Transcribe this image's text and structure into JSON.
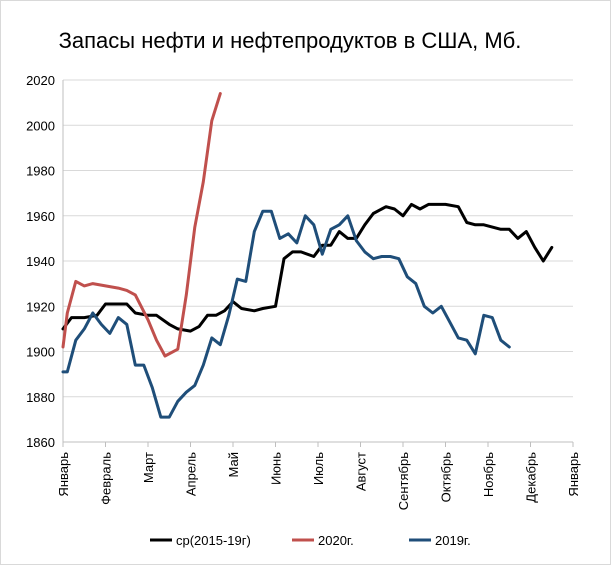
{
  "chart_data": {
    "type": "line",
    "title": "Запасы нефти и нефтепродуктов в США, Мб.",
    "xlabel": "",
    "ylabel": "",
    "ylim": [
      1860,
      2020
    ],
    "yticks": [
      1860,
      1880,
      1900,
      1920,
      1940,
      1960,
      1980,
      2000,
      2020
    ],
    "grid": true,
    "legend_position": "bottom",
    "categories": [
      "Январь",
      "Февраль",
      "Март",
      "Апрель",
      "Май",
      "Июнь",
      "Июль",
      "Август",
      "Сентябрь",
      "Октябрь",
      "Ноябрь",
      "Декабрь",
      "Январь"
    ],
    "series": [
      {
        "name": "ср(2015-19г)",
        "color": "#000000",
        "points": [
          [
            0.0,
            1910
          ],
          [
            0.2,
            1915
          ],
          [
            0.5,
            1915
          ],
          [
            0.8,
            1916
          ],
          [
            1.0,
            1921
          ],
          [
            1.3,
            1921
          ],
          [
            1.5,
            1921
          ],
          [
            1.7,
            1917
          ],
          [
            2.0,
            1916
          ],
          [
            2.2,
            1916
          ],
          [
            2.5,
            1912
          ],
          [
            2.7,
            1910
          ],
          [
            3.0,
            1909
          ],
          [
            3.2,
            1911
          ],
          [
            3.4,
            1916
          ],
          [
            3.6,
            1916
          ],
          [
            3.8,
            1918
          ],
          [
            4.0,
            1922
          ],
          [
            4.2,
            1919
          ],
          [
            4.5,
            1918
          ],
          [
            4.7,
            1919
          ],
          [
            5.0,
            1920
          ],
          [
            5.2,
            1941
          ],
          [
            5.4,
            1944
          ],
          [
            5.6,
            1944
          ],
          [
            5.9,
            1942
          ],
          [
            6.1,
            1947
          ],
          [
            6.3,
            1947
          ],
          [
            6.5,
            1953
          ],
          [
            6.7,
            1950
          ],
          [
            6.9,
            1950
          ],
          [
            7.1,
            1956
          ],
          [
            7.3,
            1961
          ],
          [
            7.6,
            1964
          ],
          [
            7.8,
            1963
          ],
          [
            8.0,
            1960
          ],
          [
            8.2,
            1965
          ],
          [
            8.4,
            1963
          ],
          [
            8.6,
            1965
          ],
          [
            8.8,
            1965
          ],
          [
            9.0,
            1965
          ],
          [
            9.3,
            1964
          ],
          [
            9.5,
            1957
          ],
          [
            9.7,
            1956
          ],
          [
            9.9,
            1956
          ],
          [
            10.1,
            1955
          ],
          [
            10.3,
            1954
          ],
          [
            10.5,
            1954
          ],
          [
            10.7,
            1950
          ],
          [
            10.9,
            1953
          ],
          [
            11.1,
            1946
          ],
          [
            11.3,
            1940
          ],
          [
            11.5,
            1946
          ]
        ]
      },
      {
        "name": "2020г.",
        "color": "#c0504d",
        "points": [
          [
            0.0,
            1902
          ],
          [
            0.1,
            1917
          ],
          [
            0.3,
            1931
          ],
          [
            0.5,
            1929
          ],
          [
            0.7,
            1930
          ],
          [
            1.0,
            1929
          ],
          [
            1.3,
            1928
          ],
          [
            1.5,
            1927
          ],
          [
            1.7,
            1925
          ],
          [
            2.0,
            1914
          ],
          [
            2.2,
            1905
          ],
          [
            2.4,
            1898
          ],
          [
            2.7,
            1901
          ],
          [
            2.9,
            1925
          ],
          [
            3.1,
            1955
          ],
          [
            3.3,
            1975
          ],
          [
            3.5,
            2002
          ],
          [
            3.7,
            2014
          ]
        ]
      },
      {
        "name": "2019г.",
        "color": "#1f4e79",
        "points": [
          [
            0.0,
            1891
          ],
          [
            0.1,
            1891
          ],
          [
            0.3,
            1905
          ],
          [
            0.5,
            1910
          ],
          [
            0.7,
            1917
          ],
          [
            0.9,
            1912
          ],
          [
            1.1,
            1908
          ],
          [
            1.3,
            1915
          ],
          [
            1.5,
            1912
          ],
          [
            1.7,
            1894
          ],
          [
            1.9,
            1894
          ],
          [
            2.1,
            1884
          ],
          [
            2.3,
            1871
          ],
          [
            2.5,
            1871
          ],
          [
            2.7,
            1878
          ],
          [
            2.9,
            1882
          ],
          [
            3.1,
            1885
          ],
          [
            3.3,
            1894
          ],
          [
            3.5,
            1906
          ],
          [
            3.7,
            1903
          ],
          [
            3.9,
            1916
          ],
          [
            4.1,
            1932
          ],
          [
            4.3,
            1931
          ],
          [
            4.5,
            1953
          ],
          [
            4.7,
            1962
          ],
          [
            4.9,
            1962
          ],
          [
            5.1,
            1950
          ],
          [
            5.3,
            1952
          ],
          [
            5.5,
            1948
          ],
          [
            5.7,
            1960
          ],
          [
            5.9,
            1956
          ],
          [
            6.1,
            1943
          ],
          [
            6.3,
            1954
          ],
          [
            6.5,
            1956
          ],
          [
            6.7,
            1960
          ],
          [
            6.9,
            1949
          ],
          [
            7.1,
            1944
          ],
          [
            7.3,
            1941
          ],
          [
            7.5,
            1942
          ],
          [
            7.7,
            1942
          ],
          [
            7.9,
            1941
          ],
          [
            8.1,
            1933
          ],
          [
            8.3,
            1930
          ],
          [
            8.5,
            1920
          ],
          [
            8.7,
            1917
          ],
          [
            8.9,
            1920
          ],
          [
            9.1,
            1913
          ],
          [
            9.3,
            1906
          ],
          [
            9.5,
            1905
          ],
          [
            9.7,
            1899
          ],
          [
            9.9,
            1916
          ],
          [
            10.1,
            1915
          ],
          [
            10.3,
            1905
          ],
          [
            10.5,
            1902
          ]
        ]
      }
    ]
  }
}
